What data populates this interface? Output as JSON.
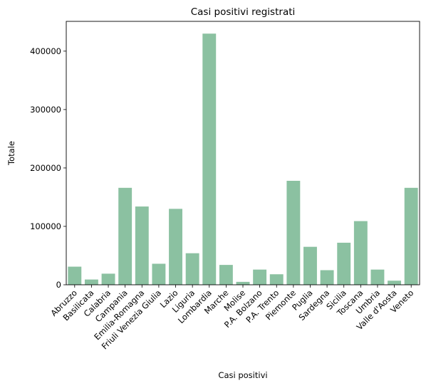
{
  "chart_data": {
    "type": "bar",
    "title": "Casi positivi registrati",
    "xlabel": "Casi positivi",
    "ylabel": "Totale",
    "categories": [
      "Abruzzo",
      "Basilicata",
      "Calabria",
      "Campania",
      "Emilia-Romagna",
      "Friuli Venezia Giulia",
      "Lazio",
      "Liguria",
      "Lombardia",
      "Marche",
      "Molise",
      "P.A. Bolzano",
      "P.A. Trento",
      "Piemonte",
      "Puglia",
      "Sardegna",
      "Sicilia",
      "Toscana",
      "Umbria",
      "Valle d'Aosta",
      "Veneto"
    ],
    "values": [
      31000,
      9000,
      19000,
      166000,
      134000,
      36000,
      130000,
      54000,
      430000,
      34000,
      5000,
      26000,
      18000,
      178000,
      65000,
      25000,
      72000,
      109000,
      26000,
      7000,
      166000
    ],
    "ylim": [
      0,
      451000
    ],
    "yticks": [
      0,
      100000,
      200000,
      300000,
      400000
    ],
    "bar_color": "#8bc1a1",
    "grid": false,
    "legend": "none"
  }
}
